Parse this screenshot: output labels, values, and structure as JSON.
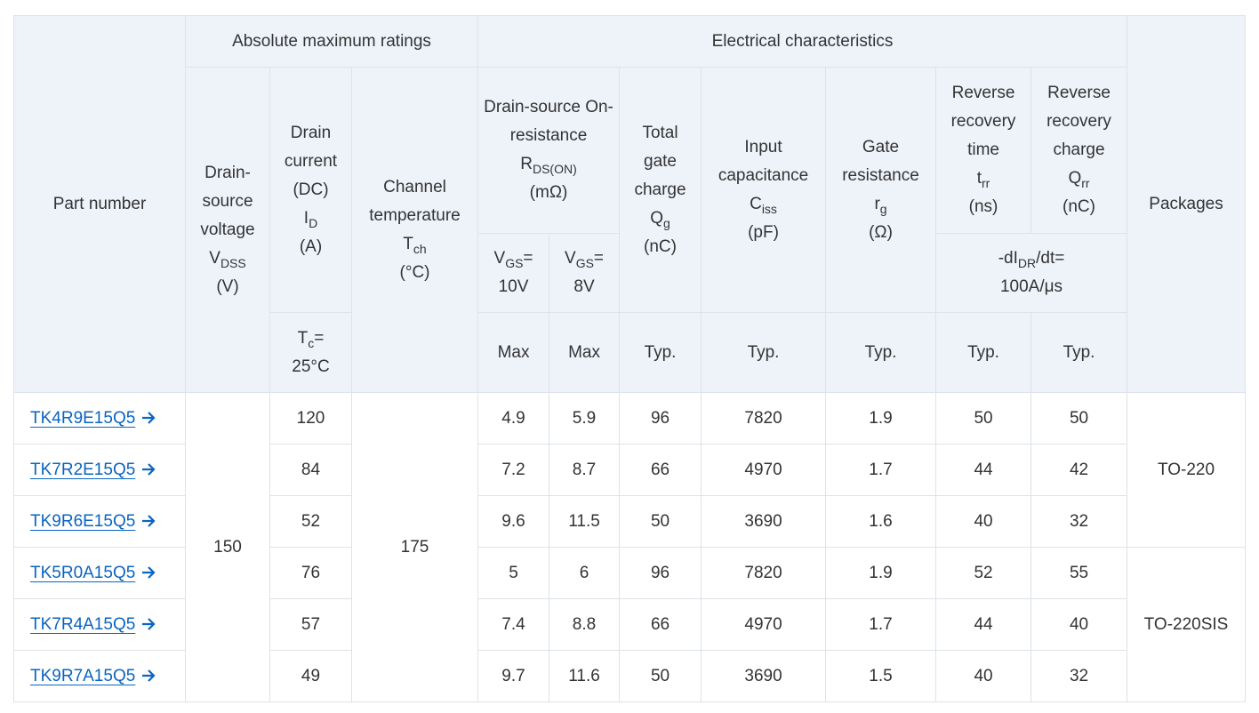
{
  "header": {
    "part_number": [
      [
        "Part number"
      ]
    ],
    "absolute_maximum_ratings": [
      [
        "Absolute maximum ratings"
      ]
    ],
    "electrical_characteristics": [
      [
        "Electrical characteristics"
      ]
    ],
    "packages": [
      [
        "Packages"
      ]
    ],
    "vdss": [
      [
        "Drain-source voltage"
      ],
      [
        "V",
        {
          "sub": "DSS"
        }
      ],
      [
        "(V)"
      ]
    ],
    "id": [
      [
        "Drain current (DC)"
      ],
      [
        "I",
        {
          "sub": "D"
        }
      ],
      [
        "(A)"
      ]
    ],
    "tch": [
      [
        "Channel temperature"
      ],
      [
        "T",
        {
          "sub": "ch"
        }
      ],
      [
        "(°C)"
      ]
    ],
    "rdson": [
      [
        "Drain-source On-resistance"
      ],
      [
        "R",
        {
          "sub": "DS(ON)"
        }
      ],
      [
        "(mΩ)"
      ]
    ],
    "qg": [
      [
        "Total gate charge"
      ],
      [
        "Q",
        {
          "sub": "g"
        }
      ],
      [
        "(nC)"
      ]
    ],
    "ciss": [
      [
        "Input capacitance"
      ],
      [
        "C",
        {
          "sub": "iss"
        }
      ],
      [
        "(pF)"
      ]
    ],
    "rg": [
      [
        "Gate resistance"
      ],
      [
        "r",
        {
          "sub": "g"
        }
      ],
      [
        "(Ω)"
      ]
    ],
    "trr": [
      [
        "Reverse recovery time"
      ],
      [
        "t",
        {
          "sub": "rr"
        }
      ],
      [
        "(ns)"
      ]
    ],
    "qrr": [
      [
        "Reverse recovery charge"
      ],
      [
        "Q",
        {
          "sub": "rr"
        }
      ],
      [
        "(nC)"
      ]
    ],
    "vgs10": [
      [
        "V",
        {
          "sub": "GS"
        },
        "="
      ],
      [
        "10V"
      ]
    ],
    "vgs8": [
      [
        "V",
        {
          "sub": "GS"
        },
        "="
      ],
      [
        "8V"
      ]
    ],
    "didt": [
      [
        "-dI",
        {
          "sub": "DR"
        },
        "/dt="
      ],
      [
        "100A/μs"
      ]
    ],
    "tc": [
      [
        "T",
        {
          "sub": "c"
        },
        "="
      ],
      [
        "25°C"
      ]
    ],
    "cond_rdson10": [
      [
        "Max"
      ]
    ],
    "cond_rdson8": [
      [
        "Max"
      ]
    ],
    "cond_qg": [
      [
        "Typ."
      ]
    ],
    "cond_ciss": [
      [
        "Typ."
      ]
    ],
    "cond_rg": [
      [
        "Typ."
      ]
    ],
    "cond_trr": [
      [
        "Typ."
      ]
    ],
    "cond_qrr": [
      [
        "Typ."
      ]
    ]
  },
  "table": {
    "vdss": 150,
    "tch": 175,
    "groups": [
      {
        "package": "TO-220",
        "rows": [
          {
            "part": "TK4R9E15Q5",
            "id": 120,
            "rdson10": 4.9,
            "rdson8": 5.9,
            "qg": 96,
            "ciss": 7820,
            "rg": 1.9,
            "trr": 50,
            "qrr": 50
          },
          {
            "part": "TK7R2E15Q5",
            "id": 84,
            "rdson10": 7.2,
            "rdson8": 8.7,
            "qg": 66,
            "ciss": 4970,
            "rg": 1.7,
            "trr": 44,
            "qrr": 42
          },
          {
            "part": "TK9R6E15Q5",
            "id": 52,
            "rdson10": 9.6,
            "rdson8": 11.5,
            "qg": 50,
            "ciss": 3690,
            "rg": 1.6,
            "trr": 40,
            "qrr": 32
          }
        ]
      },
      {
        "package": "TO-220SIS",
        "rows": [
          {
            "part": "TK5R0A15Q5",
            "id": 76,
            "rdson10": 5,
            "rdson8": 6,
            "qg": 96,
            "ciss": 7820,
            "rg": 1.9,
            "trr": 52,
            "qrr": 55
          },
          {
            "part": "TK7R4A15Q5",
            "id": 57,
            "rdson10": 7.4,
            "rdson8": 8.8,
            "qg": 66,
            "ciss": 4970,
            "rg": 1.7,
            "trr": 44,
            "qrr": 40
          },
          {
            "part": "TK9R7A15Q5",
            "id": 49,
            "rdson10": 9.7,
            "rdson8": 11.6,
            "qg": 50,
            "ciss": 3690,
            "rg": 1.5,
            "trr": 40,
            "qrr": 32
          }
        ]
      }
    ]
  }
}
